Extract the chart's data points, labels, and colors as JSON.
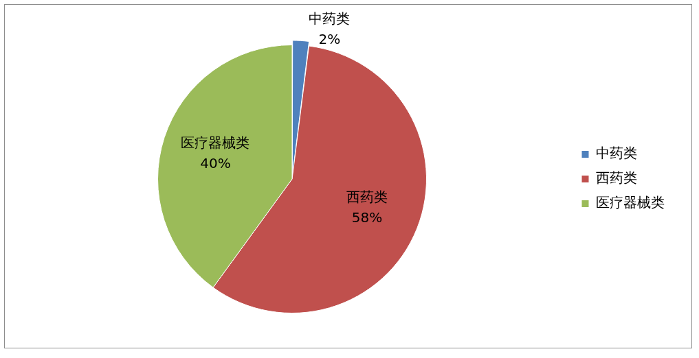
{
  "chart_data": {
    "type": "pie",
    "categories": [
      "中药类",
      "西药类",
      "医疗器械类"
    ],
    "values": [
      2,
      58,
      40
    ],
    "colors": [
      "#4f81bd",
      "#c0504d",
      "#9bbb59"
    ],
    "value_labels": [
      "2%",
      "58%",
      "40%"
    ],
    "legend": "right"
  }
}
